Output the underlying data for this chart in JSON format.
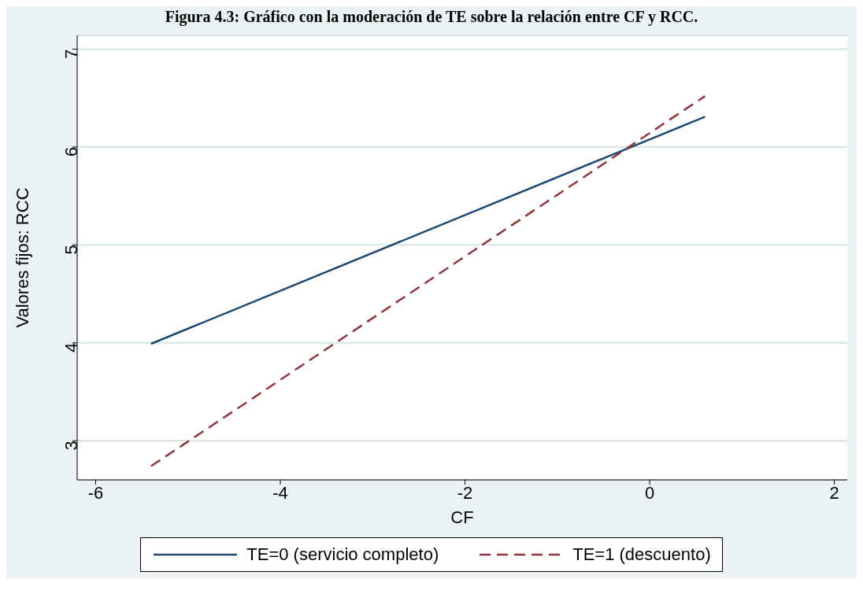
{
  "chart_data": {
    "type": "line",
    "title": "Figura 4.3: Gráfico con la moderación de TE sobre la relación entre CF y RCC.",
    "xlabel": "CF",
    "ylabel": "Valores fijos: RCC",
    "x": [
      -5.4,
      0.6
    ],
    "series": [
      {
        "name": "TE=0 (servicio completo)",
        "color": "#1a476f",
        "values": [
          3.99,
          6.31
        ],
        "line_style": "solid"
      },
      {
        "name": "TE=1 (descuento)",
        "color": "#90353b",
        "values": [
          2.74,
          6.52
        ],
        "line_style": "dashed"
      }
    ],
    "xlim": [
      -6.2,
      2.14
    ],
    "xticks": [
      -6,
      -4,
      -2,
      0,
      2
    ],
    "ylim": [
      2.6,
      7.14
    ],
    "yticks": [
      3,
      4,
      5,
      6,
      7
    ],
    "grid": "y",
    "legend": "bottom",
    "marker": "none"
  }
}
